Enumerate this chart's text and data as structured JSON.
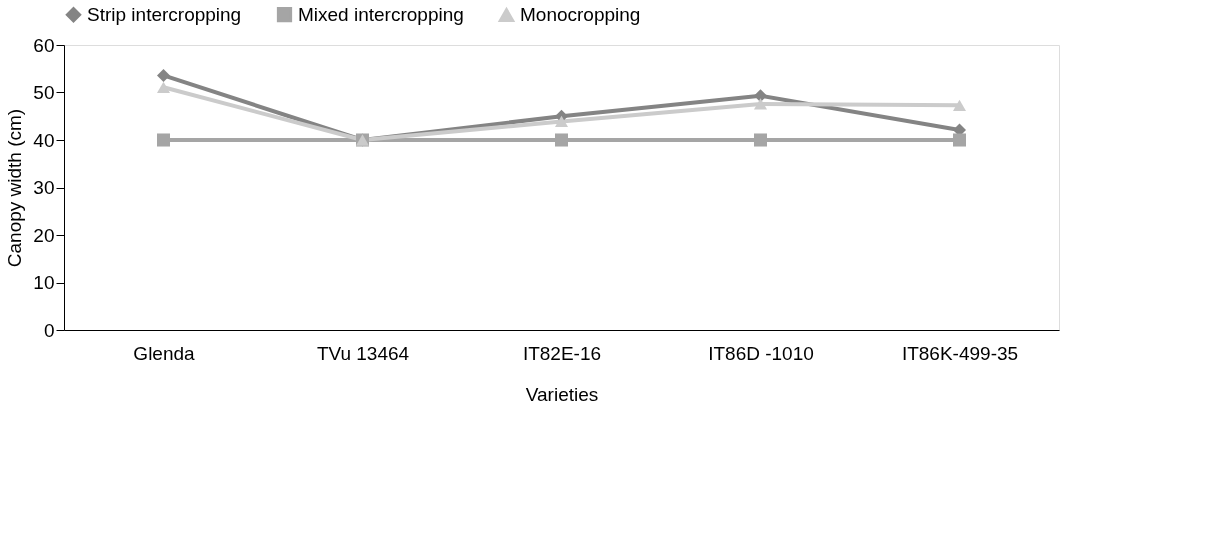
{
  "chart_data": {
    "type": "line",
    "xlabel": "Varieties",
    "ylabel": "Canopy width (cm)",
    "categories": [
      "Glenda",
      "TVu 13464",
      "IT82E-16",
      "IT86D -1010",
      "IT86K-499-35"
    ],
    "ylim": [
      0,
      60
    ],
    "yticks": [
      0,
      10,
      20,
      30,
      40,
      50,
      60
    ],
    "grid": false,
    "legend": "top",
    "line_style": "solid",
    "series": [
      {
        "name": "Strip intercropping",
        "color": "#848484",
        "marker": "diamond",
        "values": [
          53.6,
          40,
          45,
          49.3,
          42.1
        ]
      },
      {
        "name": "Mixed intercropping",
        "color": "#a5a5a5",
        "marker": "square",
        "values": [
          40,
          40,
          40,
          40,
          40
        ]
      },
      {
        "name": "Monocropping",
        "color": "#cbcbcb",
        "marker": "triangle",
        "values": [
          51.1,
          40,
          43.9,
          47.6,
          47.3
        ]
      }
    ]
  }
}
